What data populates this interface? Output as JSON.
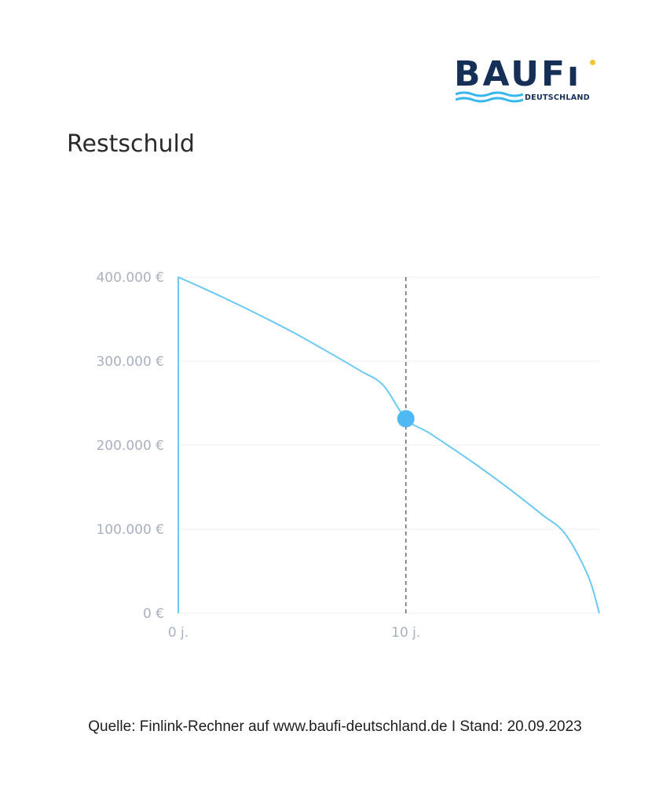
{
  "logo": {
    "word": "BAUFi",
    "sub": "DEUTSCHLAND",
    "colors": {
      "navy": "#152f56",
      "wave": "#38b6ee",
      "dot": "#f4c531"
    }
  },
  "title": "Restschuld",
  "source": "Quelle: Finlink-Rechner auf www.baufi-deutschland.de I Stand: 20.09.2023",
  "chart_data": {
    "type": "line",
    "title": "Restschuld",
    "xlabel": "",
    "ylabel": "",
    "xlim": [
      0,
      18.5
    ],
    "ylim": [
      0,
      400000
    ],
    "y_ticks": [
      {
        "value": 0,
        "label": "0 €"
      },
      {
        "value": 100000,
        "label": "100.000 €"
      },
      {
        "value": 200000,
        "label": "200.000 €"
      },
      {
        "value": 300000,
        "label": "300.000 €"
      },
      {
        "value": 400000,
        "label": "400.000 €"
      }
    ],
    "x_ticks": [
      {
        "value": 0,
        "label": "0 j."
      },
      {
        "value": 10,
        "label": "10 j."
      }
    ],
    "grid": "horizontal",
    "series": [
      {
        "color": "#6cc9f2",
        "x": [
          0,
          0,
          1,
          2,
          3,
          4,
          5,
          6,
          7,
          8,
          9,
          10,
          11,
          12,
          13,
          14,
          15,
          16,
          17,
          18,
          18.5
        ],
        "y": [
          0,
          400000,
          388000,
          375500,
          362500,
          349000,
          335000,
          320000,
          304500,
          288500,
          271500,
          231500,
          215000,
          197000,
          178500,
          159000,
          138500,
          117000,
          94500,
          45000,
          0
        ]
      }
    ],
    "marker": {
      "x": 10,
      "y": 231500,
      "color": "#50b9f3"
    },
    "vertical_line": {
      "x": 10,
      "style": "dashed",
      "color": "#6f6f6f"
    }
  }
}
